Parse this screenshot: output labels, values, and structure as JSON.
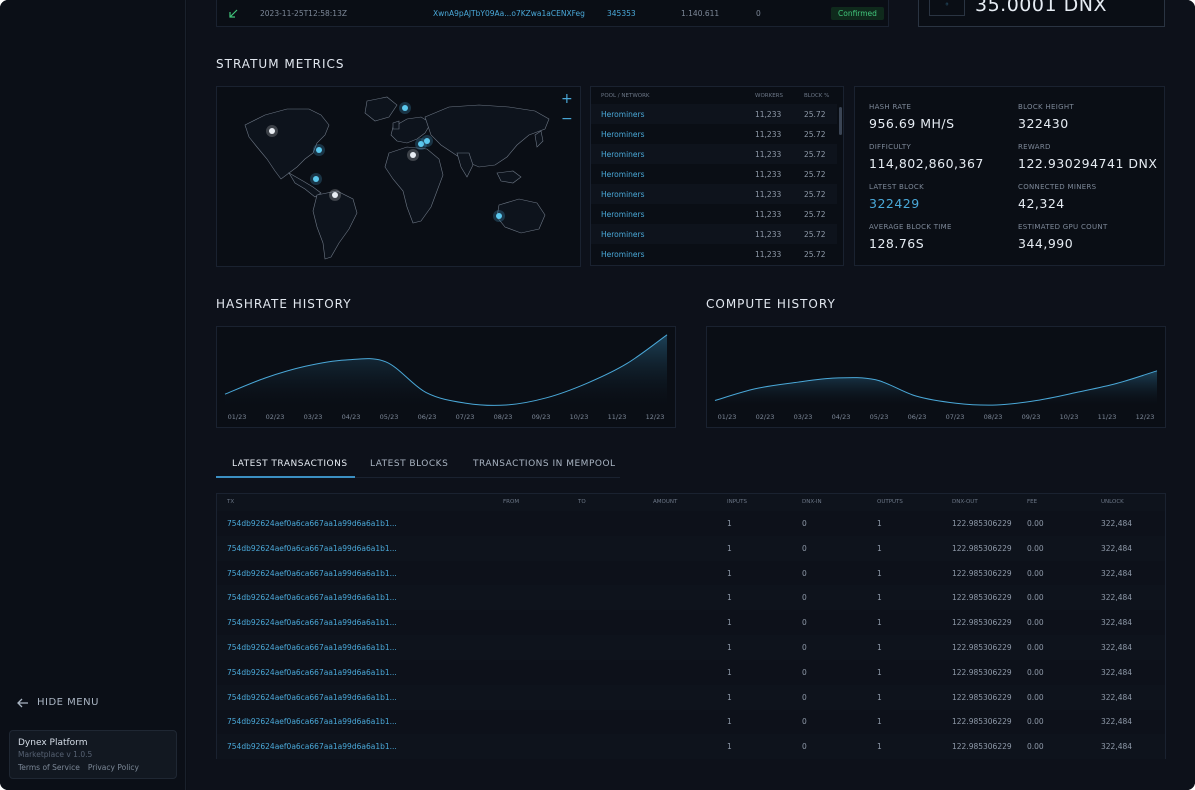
{
  "top_tx": {
    "time": "2023-11-25T12:58:13Z",
    "hash": "XwnA9pAJTbY09Aa...o7KZwa1aCENXFeg",
    "block": "345353",
    "amount": "1.140.611",
    "count": "0",
    "status": "Confirmed"
  },
  "balance": {
    "value": "35.0001 DNX"
  },
  "sidebar": {
    "hide_menu": "HIDE MENU",
    "platform_name": "Dynex Platform",
    "platform_version": "Marketplace v 1.0.5",
    "terms": "Terms of Service",
    "privacy": "Privacy Policy"
  },
  "stratum": {
    "title": "STRATUM METRICS",
    "zoom_in": "+",
    "zoom_out": "−",
    "pool_columns": [
      "POOL / NETWORK",
      "WORKERS",
      "BLOCK %"
    ],
    "pools": [
      {
        "name": "Herominers",
        "workers": "11,233",
        "block": "25.72"
      },
      {
        "name": "Herominers",
        "workers": "11,233",
        "block": "25.72"
      },
      {
        "name": "Herominers",
        "workers": "11,233",
        "block": "25.72"
      },
      {
        "name": "Herominers",
        "workers": "11,233",
        "block": "25.72"
      },
      {
        "name": "Herominers",
        "workers": "11,233",
        "block": "25.72"
      },
      {
        "name": "Herominers",
        "workers": "11,233",
        "block": "25.72"
      },
      {
        "name": "Herominers",
        "workers": "11,233",
        "block": "25.72"
      },
      {
        "name": "Herominers",
        "workers": "11,233",
        "block": "25.72"
      }
    ],
    "metrics": [
      {
        "label": "HASH RATE",
        "value": "956.69 MH/S"
      },
      {
        "label": "BLOCK HEIGHT",
        "value": "322430"
      },
      {
        "label": "DIFFICULTY",
        "value": "114,802,860,367"
      },
      {
        "label": "REWARD",
        "value": "122.930294741 DNX"
      },
      {
        "label": "LATEST BLOCK",
        "value": "322429"
      },
      {
        "label": "CONNECTED MINERS",
        "value": "42,324"
      },
      {
        "label": "AVERAGE BLOCK TIME",
        "value": "128.76S"
      },
      {
        "label": "ESTIMATED GPU COUNT",
        "value": "344,990"
      }
    ]
  },
  "chart_data": [
    {
      "type": "area",
      "title": "HASHRATE HISTORY",
      "categories": [
        "01/23",
        "02/23",
        "03/23",
        "04/23",
        "05/23",
        "06/23",
        "07/23",
        "08/23",
        "09/23",
        "10/23",
        "11/23",
        "12/23"
      ],
      "values": [
        12,
        30,
        43,
        50,
        48,
        14,
        2,
        0,
        8,
        24,
        46,
        78
      ],
      "ylim": [
        0,
        80
      ],
      "grid": false
    },
    {
      "type": "area",
      "title": "COMPUTE HISTORY",
      "categories": [
        "01/23",
        "02/23",
        "03/23",
        "04/23",
        "05/23",
        "06/23",
        "07/23",
        "08/23",
        "09/23",
        "10/23",
        "11/23",
        "12/23"
      ],
      "values": [
        5,
        18,
        25,
        30,
        28,
        10,
        2,
        0,
        5,
        14,
        24,
        38
      ],
      "ylim": [
        0,
        80
      ],
      "grid": false
    }
  ],
  "tabs": [
    "LATEST TRANSACTIONS",
    "LATEST BLOCKS",
    "TRANSACTIONS IN MEMPOOL"
  ],
  "transactions": {
    "columns": [
      "TX",
      "FROM",
      "TO",
      "AMOUNT",
      "INPUTS",
      "DNX-IN",
      "OUTPUTS",
      "DNX-OUT",
      "FEE",
      "UNLOCK"
    ],
    "rows": [
      {
        "tx": "754db92624aef0a6ca667aa1a99d6a6a1b1...",
        "from": "",
        "to": "",
        "amount": "",
        "inputs": "1",
        "dnx_in": "0",
        "outputs": "1",
        "dnx_out": "122.985306229",
        "fee": "0.00",
        "unlock": "322,484"
      },
      {
        "tx": "754db92624aef0a6ca667aa1a99d6a6a1b1...",
        "from": "",
        "to": "",
        "amount": "",
        "inputs": "1",
        "dnx_in": "0",
        "outputs": "1",
        "dnx_out": "122.985306229",
        "fee": "0.00",
        "unlock": "322,484"
      },
      {
        "tx": "754db92624aef0a6ca667aa1a99d6a6a1b1...",
        "from": "",
        "to": "",
        "amount": "",
        "inputs": "1",
        "dnx_in": "0",
        "outputs": "1",
        "dnx_out": "122.985306229",
        "fee": "0.00",
        "unlock": "322,484"
      },
      {
        "tx": "754db92624aef0a6ca667aa1a99d6a6a1b1...",
        "from": "",
        "to": "",
        "amount": "",
        "inputs": "1",
        "dnx_in": "0",
        "outputs": "1",
        "dnx_out": "122.985306229",
        "fee": "0.00",
        "unlock": "322,484"
      },
      {
        "tx": "754db92624aef0a6ca667aa1a99d6a6a1b1...",
        "from": "",
        "to": "",
        "amount": "",
        "inputs": "1",
        "dnx_in": "0",
        "outputs": "1",
        "dnx_out": "122.985306229",
        "fee": "0.00",
        "unlock": "322,484"
      },
      {
        "tx": "754db92624aef0a6ca667aa1a99d6a6a1b1...",
        "from": "",
        "to": "",
        "amount": "",
        "inputs": "1",
        "dnx_in": "0",
        "outputs": "1",
        "dnx_out": "122.985306229",
        "fee": "0.00",
        "unlock": "322,484"
      },
      {
        "tx": "754db92624aef0a6ca667aa1a99d6a6a1b1...",
        "from": "",
        "to": "",
        "amount": "",
        "inputs": "1",
        "dnx_in": "0",
        "outputs": "1",
        "dnx_out": "122.985306229",
        "fee": "0.00",
        "unlock": "322,484"
      },
      {
        "tx": "754db92624aef0a6ca667aa1a99d6a6a1b1...",
        "from": "",
        "to": "",
        "amount": "",
        "inputs": "1",
        "dnx_in": "0",
        "outputs": "1",
        "dnx_out": "122.985306229",
        "fee": "0.00",
        "unlock": "322,484"
      },
      {
        "tx": "754db92624aef0a6ca667aa1a99d6a6a1b1...",
        "from": "",
        "to": "",
        "amount": "",
        "inputs": "1",
        "dnx_in": "0",
        "outputs": "1",
        "dnx_out": "122.985306229",
        "fee": "0.00",
        "unlock": "322,484"
      },
      {
        "tx": "754db92624aef0a6ca667aa1a99d6a6a1b1...",
        "from": "",
        "to": "",
        "amount": "",
        "inputs": "1",
        "dnx_in": "0",
        "outputs": "1",
        "dnx_out": "122.985306229",
        "fee": "0.00",
        "unlock": "322,484"
      }
    ]
  },
  "colors": {
    "accent": "#4aa8d8",
    "success": "#41c57b",
    "background": "#0d111a"
  }
}
